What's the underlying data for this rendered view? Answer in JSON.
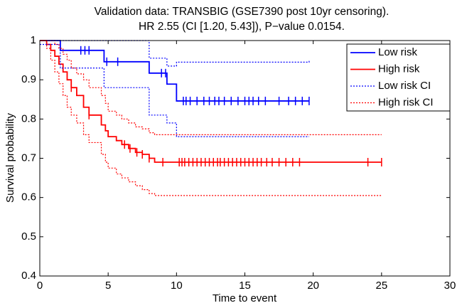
{
  "chart_data": {
    "type": "step",
    "title": [
      "Validation data: TRANSBIG (GSE7390 post 10yr censoring).",
      "HR 2.55 (CI [1.20, 5.43]), P−value 0.0154."
    ],
    "xlabel": "Time to event",
    "ylabel": "Survival probability",
    "xlim": [
      0,
      30
    ],
    "xticks": [
      0,
      5,
      10,
      15,
      20,
      25,
      30
    ],
    "ylim": [
      0.4,
      1
    ],
    "yticks": [
      0.4,
      0.5,
      0.6,
      0.7,
      0.8,
      0.9,
      1
    ],
    "grid": false,
    "legend": "upper right",
    "series": [
      {
        "name": "Low risk",
        "color": "#0000ff",
        "style": "solid",
        "x": [
          0,
          1.5,
          4.7,
          8,
          9.3,
          10,
          19.7
        ],
        "values": [
          1,
          0.975,
          0.946,
          0.917,
          0.889,
          0.846,
          0.846
        ],
        "censored": [
          3,
          3.3,
          3.6,
          4.9,
          5.7,
          8.9,
          9.2,
          10.5,
          10.7,
          11,
          11.5,
          12,
          12.4,
          12.8,
          13.1,
          13.5,
          14,
          14.5,
          15,
          15.3,
          15.6,
          16,
          16.5,
          17.5,
          18.2,
          18.7,
          19.2,
          19.7
        ]
      },
      {
        "name": "High risk",
        "color": "#ff0000",
        "style": "solid",
        "x": [
          0,
          0.5,
          0.8,
          1.1,
          1.4,
          1.7,
          2.0,
          2.3,
          2.7,
          3.2,
          3.6,
          4.5,
          4.8,
          5.0,
          5.6,
          6.0,
          6.5,
          7.0,
          7.5,
          8.0,
          8.4,
          25
        ],
        "values": [
          1,
          0.99,
          0.975,
          0.96,
          0.94,
          0.92,
          0.9,
          0.88,
          0.86,
          0.83,
          0.81,
          0.785,
          0.77,
          0.755,
          0.745,
          0.735,
          0.725,
          0.715,
          0.71,
          0.7,
          0.69,
          0.69
        ],
        "censored": [
          2.3,
          3.6,
          6.2,
          6.6,
          7.1,
          7.5,
          8.0,
          9,
          10.2,
          10.4,
          10.6,
          10.9,
          11.2,
          11.5,
          11.8,
          12.1,
          12.4,
          12.7,
          13,
          13.2,
          13.5,
          13.8,
          14.1,
          14.4,
          14.7,
          15,
          15.3,
          15.6,
          15.9,
          16.2,
          16.6,
          17,
          17.5,
          18,
          18.5,
          19,
          24,
          25
        ]
      },
      {
        "name": "Low risk CI",
        "color": "#0000ff",
        "style": "dotted",
        "x": [
          0,
          1.5,
          4.7,
          8,
          9.3,
          10,
          19.7
        ],
        "upper": [
          1,
          1,
          1,
          0.955,
          0.935,
          0.945,
          0.95
        ],
        "lower": [
          0.99,
          0.93,
          0.88,
          0.81,
          0.79,
          0.755,
          0.755
        ]
      },
      {
        "name": "High risk CI",
        "color": "#ff0000",
        "style": "dotted",
        "x": [
          0,
          0.5,
          0.8,
          1.1,
          1.4,
          1.7,
          2.0,
          2.3,
          2.7,
          3.2,
          3.6,
          4.5,
          4.8,
          5.0,
          5.6,
          6.0,
          6.5,
          7.0,
          7.5,
          8.0,
          8.4,
          25
        ],
        "upper": [
          1,
          1,
          1,
          0.99,
          0.98,
          0.965,
          0.95,
          0.93,
          0.915,
          0.9,
          0.88,
          0.86,
          0.84,
          0.82,
          0.81,
          0.8,
          0.79,
          0.78,
          0.775,
          0.765,
          0.76,
          0.76
        ],
        "lower": [
          1,
          0.98,
          0.95,
          0.92,
          0.89,
          0.86,
          0.83,
          0.81,
          0.79,
          0.76,
          0.74,
          0.71,
          0.69,
          0.675,
          0.66,
          0.65,
          0.64,
          0.63,
          0.62,
          0.61,
          0.605,
          0.605
        ]
      }
    ]
  }
}
